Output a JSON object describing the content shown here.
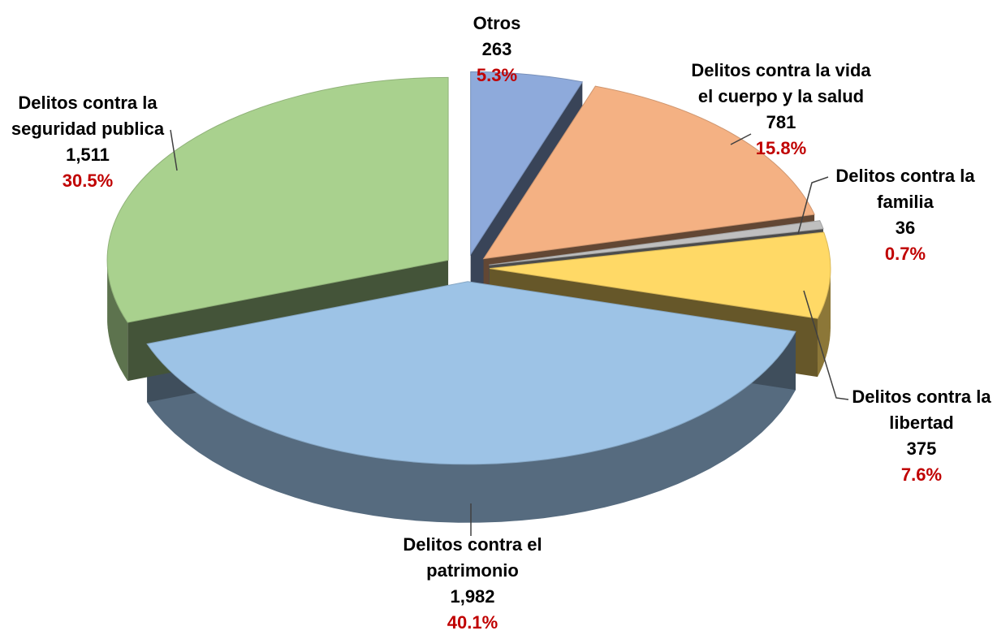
{
  "chart_data": {
    "type": "pie",
    "categories": [
      "Otros",
      "Delitos contra la vida\nel cuerpo y la salud",
      "Delitos contra la\nfamilia",
      "Delitos contra la\nlibertad",
      "Delitos contra el\npatrimonio",
      "Delitos contra la\nseguridad publica"
    ],
    "values": [
      263,
      781,
      36,
      375,
      1982,
      1511
    ],
    "value_labels": [
      "263",
      "781",
      "36",
      "375",
      "1,982",
      "1,511"
    ],
    "percentages": [
      5.3,
      15.8,
      0.7,
      7.6,
      40.1,
      30.5
    ],
    "percentage_labels": [
      "5.3%",
      "15.8%",
      "0.7%",
      "7.6%",
      "40.1%",
      "30.5%"
    ],
    "colors": [
      "#8eaadb",
      "#f4b183",
      "#bfbfbf",
      "#ffd966",
      "#9dc3e6",
      "#a9d18e"
    ]
  }
}
